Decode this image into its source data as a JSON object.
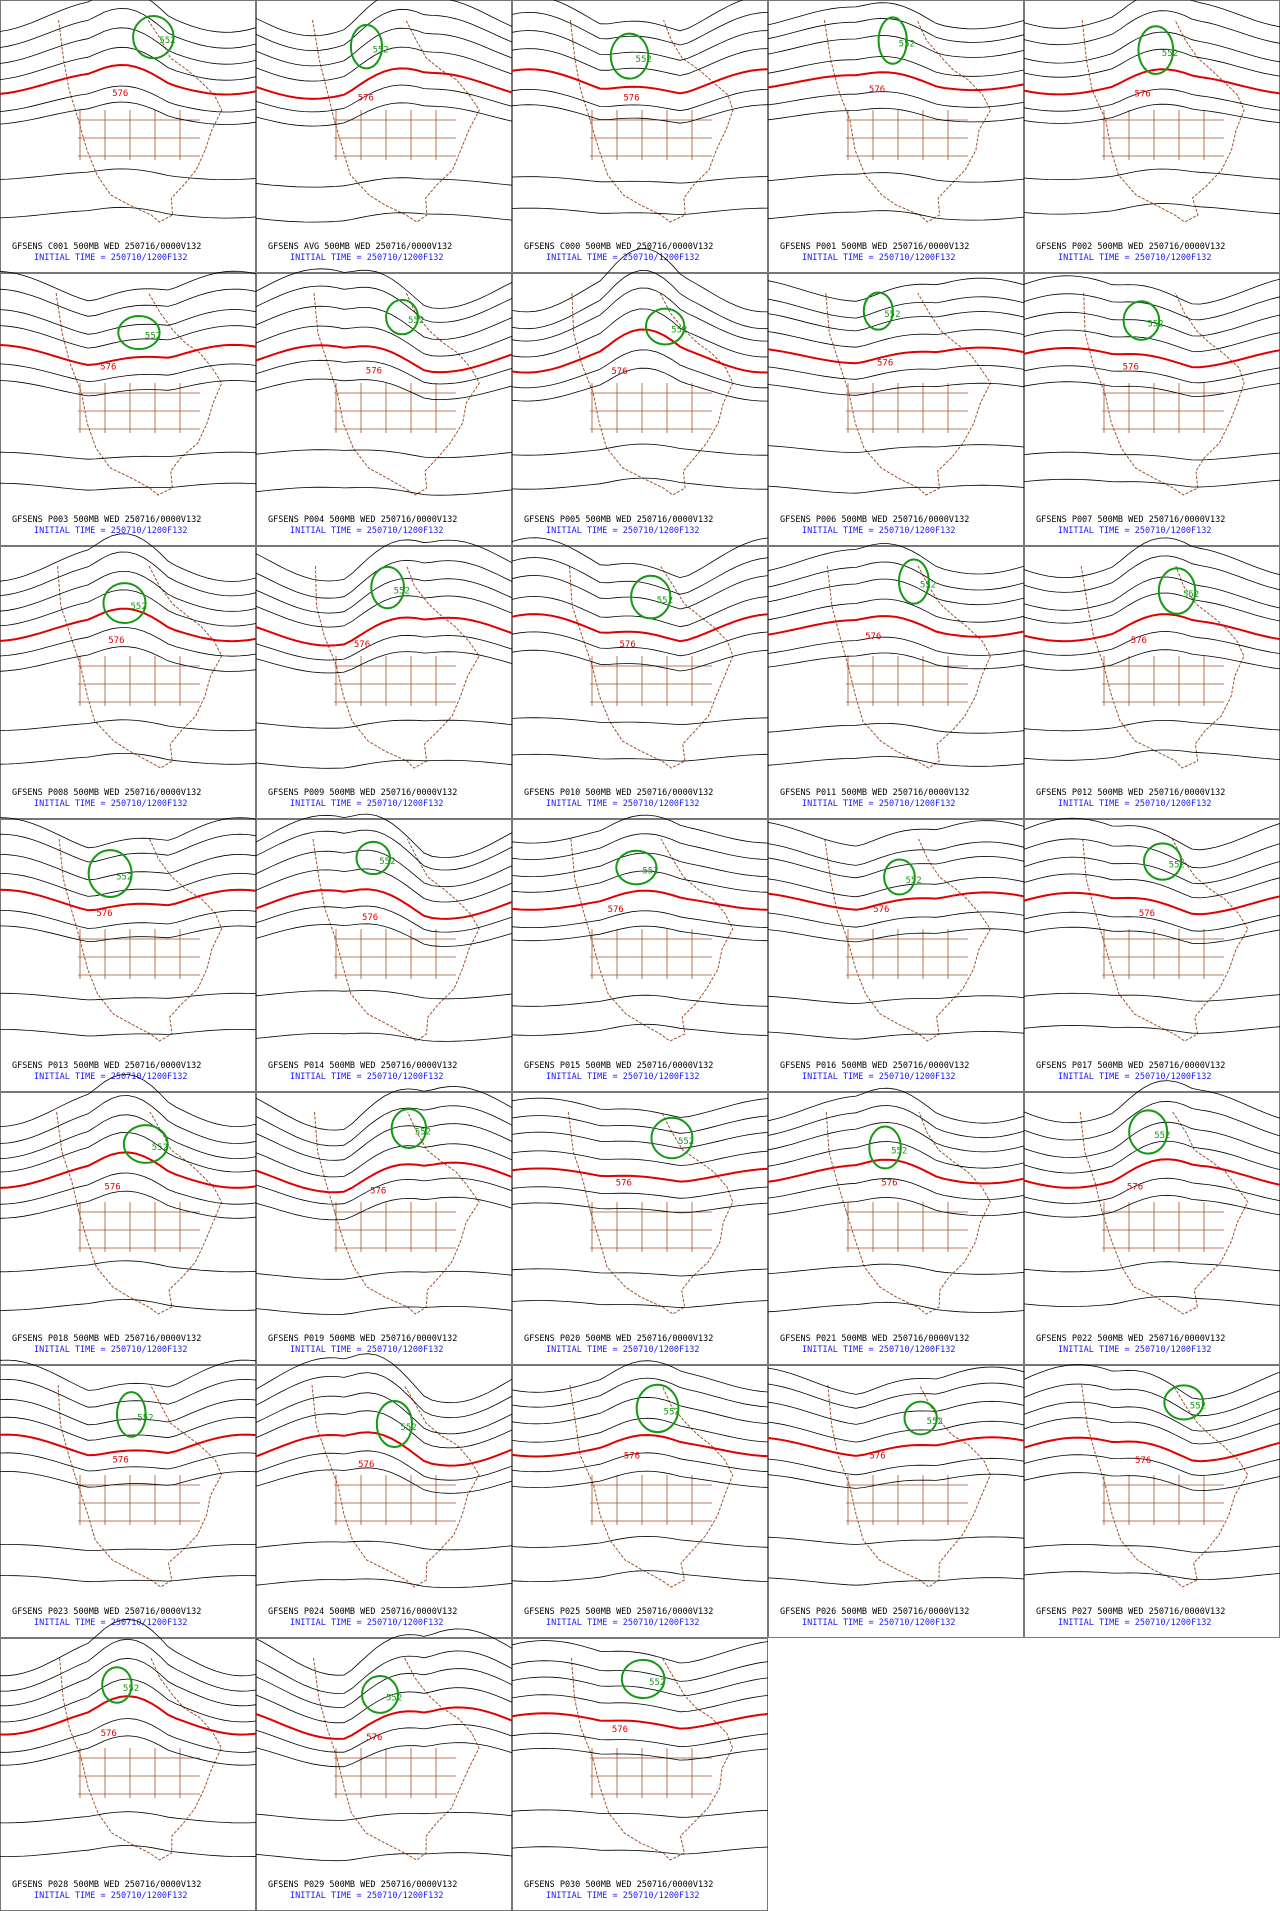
{
  "panels": [
    {
      "run_line": "GFSENS C001 500MB WED 250716/0000V132",
      "initial_time": "INITIAL TIME = 250710/1200F132",
      "contour_labels": [
        "576",
        "552"
      ]
    },
    {
      "run_line": "GFSENS AVG 500MB WED 250716/0000V132",
      "initial_time": "INITIAL TIME = 250710/1200F132",
      "contour_labels": [
        "576",
        "552"
      ]
    },
    {
      "run_line": "GFSENS C000 500MB WED 250716/0000V132",
      "initial_time": "INITIAL TIME = 250710/1200F132",
      "contour_labels": [
        "576",
        "552"
      ]
    },
    {
      "run_line": "GFSENS P001 500MB WED 250716/0000V132",
      "initial_time": "INITIAL TIME = 250710/1200F132",
      "contour_labels": [
        "576",
        "552"
      ]
    },
    {
      "run_line": "GFSENS P002 500MB WED 250716/0000V132",
      "initial_time": "INITIAL TIME = 250710/1200F132",
      "contour_labels": [
        "576",
        "552"
      ]
    },
    {
      "run_line": "GFSENS P003 500MB WED 250716/0000V132",
      "initial_time": "INITIAL TIME = 250710/1200F132",
      "contour_labels": [
        "576",
        "552"
      ]
    },
    {
      "run_line": "GFSENS P004 500MB WED 250716/0000V132",
      "initial_time": "INITIAL TIME = 250710/1200F132",
      "contour_labels": [
        "576",
        "552"
      ]
    },
    {
      "run_line": "GFSENS P005 500MB WED 250716/0000V132",
      "initial_time": "INITIAL TIME = 250710/1200F132",
      "contour_labels": [
        "576",
        "552"
      ]
    },
    {
      "run_line": "GFSENS P006 500MB WED 250716/0000V132",
      "initial_time": "INITIAL TIME = 250710/1200F132",
      "contour_labels": [
        "576",
        "552"
      ]
    },
    {
      "run_line": "GFSENS P007 500MB WED 250716/0000V132",
      "initial_time": "INITIAL TIME = 250710/1200F132",
      "contour_labels": [
        "576",
        "552"
      ]
    },
    {
      "run_line": "GFSENS P008 500MB WED 250716/0000V132",
      "initial_time": "INITIAL TIME = 250710/1200F132",
      "contour_labels": [
        "576",
        "552"
      ]
    },
    {
      "run_line": "GFSENS P009 500MB WED 250716/0000V132",
      "initial_time": "INITIAL TIME = 250710/1200F132",
      "contour_labels": [
        "576",
        "552"
      ]
    },
    {
      "run_line": "GFSENS P010 500MB WED 250716/0000V132",
      "initial_time": "INITIAL TIME = 250710/1200F132",
      "contour_labels": [
        "576",
        "552"
      ]
    },
    {
      "run_line": "GFSENS P011 500MB WED 250716/0000V132",
      "initial_time": "INITIAL TIME = 250710/1200F132",
      "contour_labels": [
        "576",
        "552"
      ]
    },
    {
      "run_line": "GFSENS P012 500MB WED 250716/0000V132",
      "initial_time": "INITIAL TIME = 250710/1200F132",
      "contour_labels": [
        "576",
        "552"
      ]
    },
    {
      "run_line": "GFSENS P013 500MB WED 250716/0000V132",
      "initial_time": "INITIAL TIME = 250710/1200F132",
      "contour_labels": [
        "576",
        "552"
      ]
    },
    {
      "run_line": "GFSENS P014 500MB WED 250716/0000V132",
      "initial_time": "INITIAL TIME = 250710/1200F132",
      "contour_labels": [
        "576",
        "552"
      ]
    },
    {
      "run_line": "GFSENS P015 500MB WED 250716/0000V132",
      "initial_time": "INITIAL TIME = 250710/1200F132",
      "contour_labels": [
        "576",
        "552"
      ]
    },
    {
      "run_line": "GFSENS P016 500MB WED 250716/0000V132",
      "initial_time": "INITIAL TIME = 250710/1200F132",
      "contour_labels": [
        "576",
        "552"
      ]
    },
    {
      "run_line": "GFSENS P017 500MB WED 250716/0000V132",
      "initial_time": "INITIAL TIME = 250710/1200F132",
      "contour_labels": [
        "576",
        "552"
      ]
    },
    {
      "run_line": "GFSENS P018 500MB WED 250716/0000V132",
      "initial_time": "INITIAL TIME = 250710/1200F132",
      "contour_labels": [
        "576",
        "552"
      ]
    },
    {
      "run_line": "GFSENS P019 500MB WED 250716/0000V132",
      "initial_time": "INITIAL TIME = 250710/1200F132",
      "contour_labels": [
        "576",
        "552"
      ]
    },
    {
      "run_line": "GFSENS P020 500MB WED 250716/0000V132",
      "initial_time": "INITIAL TIME = 250710/1200F132",
      "contour_labels": [
        "576",
        "552"
      ]
    },
    {
      "run_line": "GFSENS P021 500MB WED 250716/0000V132",
      "initial_time": "INITIAL TIME = 250710/1200F132",
      "contour_labels": [
        "576",
        "552"
      ]
    },
    {
      "run_line": "GFSENS P022 500MB WED 250716/0000V132",
      "initial_time": "INITIAL TIME = 250710/1200F132",
      "contour_labels": [
        "576",
        "552"
      ]
    },
    {
      "run_line": "GFSENS P023 500MB WED 250716/0000V132",
      "initial_time": "INITIAL TIME = 250710/1200F132",
      "contour_labels": [
        "576",
        "552"
      ]
    },
    {
      "run_line": "GFSENS P024 500MB WED 250716/0000V132",
      "initial_time": "INITIAL TIME = 250710/1200F132",
      "contour_labels": [
        "576",
        "552"
      ]
    },
    {
      "run_line": "GFSENS P025 500MB WED 250716/0000V132",
      "initial_time": "INITIAL TIME = 250710/1200F132",
      "contour_labels": [
        "576",
        "552"
      ]
    },
    {
      "run_line": "GFSENS P026 500MB WED 250716/0000V132",
      "initial_time": "INITIAL TIME = 250710/1200F132",
      "contour_labels": [
        "576",
        "552"
      ]
    },
    {
      "run_line": "GFSENS P027 500MB WED 250716/0000V132",
      "initial_time": "INITIAL TIME = 250710/1200F132",
      "contour_labels": [
        "576",
        "552"
      ]
    },
    {
      "run_line": "GFSENS P028 500MB WED 250716/0000V132",
      "initial_time": "INITIAL TIME = 250710/1200F132",
      "contour_labels": [
        "576",
        "552"
      ]
    },
    {
      "run_line": "GFSENS P029 500MB WED 250716/0000V132",
      "initial_time": "INITIAL TIME = 250710/1200F132",
      "contour_labels": [
        "576",
        "552"
      ]
    },
    {
      "run_line": "GFSENS P030 500MB WED 250716/0000V132",
      "initial_time": "INITIAL TIME = 250710/1200F132",
      "contour_labels": [
        "576",
        "552"
      ]
    }
  ]
}
